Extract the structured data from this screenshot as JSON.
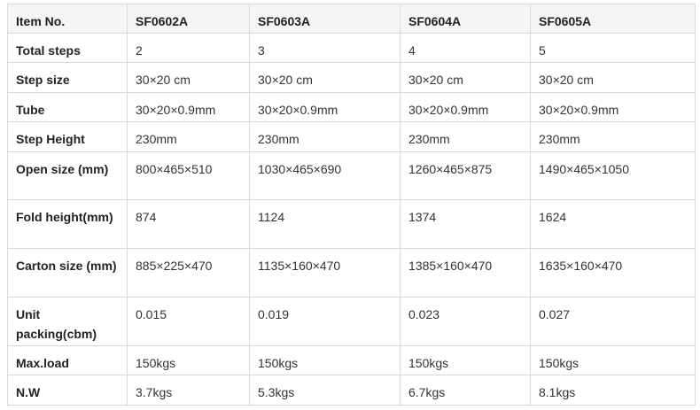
{
  "table": {
    "header": [
      "Item No.",
      "SF0602A",
      "SF0603A",
      "SF0604A",
      "SF0605A"
    ],
    "rows": [
      [
        "Total steps",
        "2",
        "3",
        "4",
        "5"
      ],
      [
        "Step size",
        "30×20 cm",
        "30×20 cm",
        "30×20 cm",
        "30×20 cm"
      ],
      [
        "Tube",
        "30×20×0.9mm",
        "30×20×0.9mm",
        "30×20×0.9mm",
        "30×20×0.9mm"
      ],
      [
        "Step Height",
        "230mm",
        "230mm",
        "230mm",
        "230mm"
      ],
      [
        "Open size (mm)",
        "800×465×510",
        "1030×465×690",
        "1260×465×875",
        "1490×465×1050"
      ],
      [
        "Fold height(mm)",
        "874",
        "1124",
        "1374",
        "1624"
      ],
      [
        "Carton size (mm)",
        "885×225×470",
        "1135×160×470",
        "1385×160×470",
        "1635×160×470"
      ],
      [
        "Unit packing(cbm)",
        "0.015",
        "0.019",
        "0.023",
        "0.027"
      ],
      [
        "Max.load",
        "150kgs",
        "150kgs",
        "150kgs",
        "150kgs"
      ],
      [
        "N.W",
        "3.7kgs",
        "5.3kgs",
        "6.7kgs",
        "8.1kgs"
      ]
    ]
  }
}
